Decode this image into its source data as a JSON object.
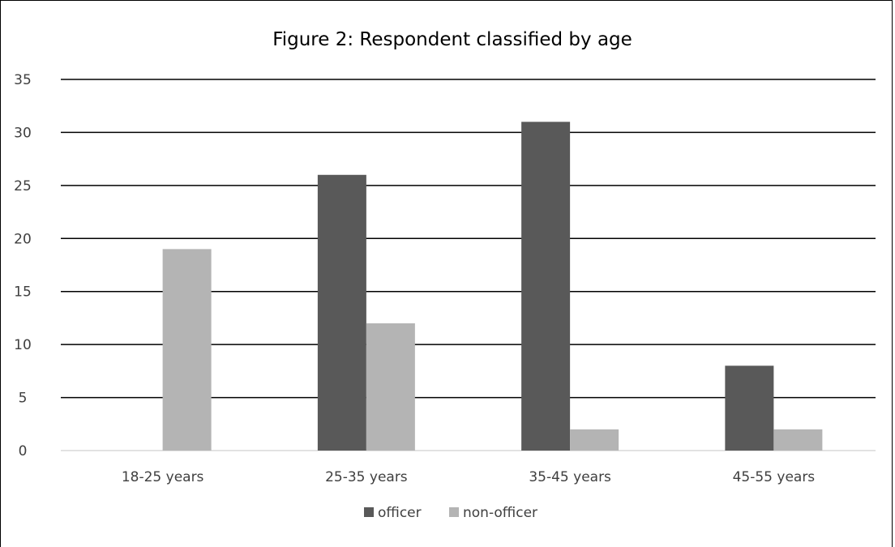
{
  "chart_data": {
    "type": "bar",
    "title": "Figure 2: Respondent classified by age",
    "categories": [
      "18-25 years",
      "25-35 years",
      "35-45 years",
      "45-55 years"
    ],
    "series": [
      {
        "name": "officer",
        "values": [
          0,
          26,
          31,
          8
        ],
        "color": "#595959"
      },
      {
        "name": "non-officer",
        "values": [
          19,
          12,
          2,
          2
        ],
        "color": "#b4b4b4"
      }
    ],
    "ylim": [
      0,
      35
    ],
    "yticks": [
      0,
      5,
      10,
      15,
      20,
      25,
      30,
      35
    ],
    "grid": true,
    "legend_position": "bottom",
    "xlabel": "",
    "ylabel": ""
  }
}
